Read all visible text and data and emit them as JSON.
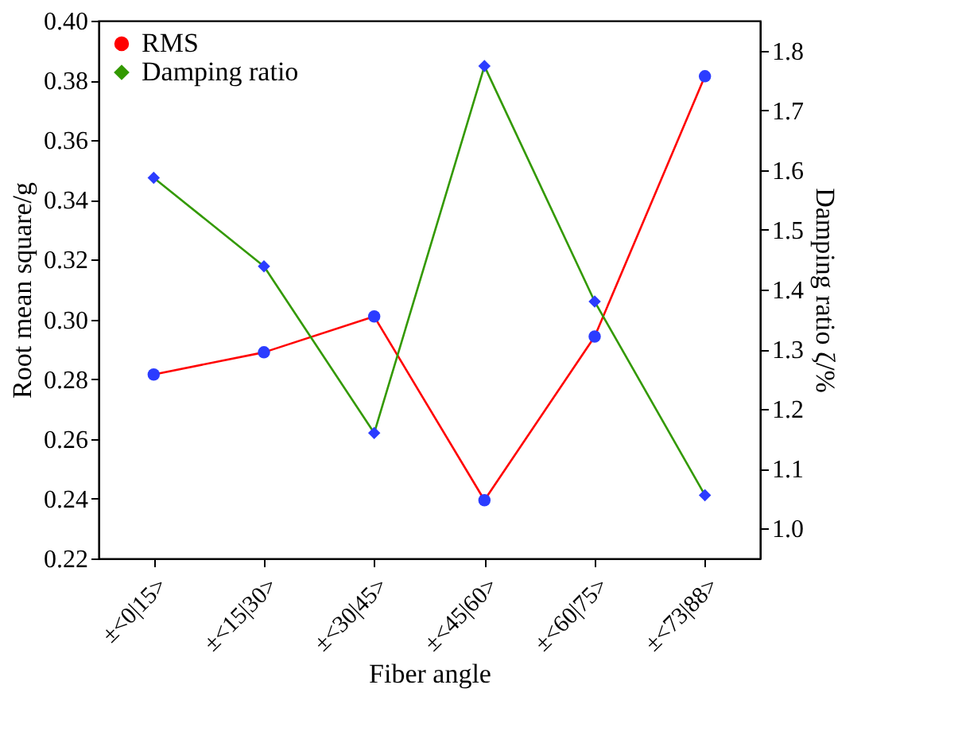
{
  "chart_data": {
    "type": "line",
    "xlabel": "Fiber angle",
    "ylabel": "Root mean square/g",
    "y2label": "Damping ratio ζ/%",
    "categories": [
      "±<0|15>",
      "±<15|30>",
      "±<30|45>",
      "±<45|60>",
      "±<60|75>",
      "±<73|88>"
    ],
    "series": [
      {
        "name": "RMS",
        "color": "#ff0000",
        "marker": "circle",
        "values": [
          0.2816,
          0.289,
          0.301,
          0.2395,
          0.2943,
          0.3814
        ]
      },
      {
        "name": "Damping ratio",
        "color": "#339900",
        "marker": "diamond",
        "axis": "y2",
        "values": [
          1.587,
          1.439,
          1.16,
          1.774,
          1.38,
          1.056
        ]
      }
    ],
    "ylim": [
      0.22,
      0.4
    ],
    "yticks": [
      0.22,
      0.24,
      0.26,
      0.28,
      {
        "value": 0.3,
        "label": "0.30"
      },
      0.32,
      0.34,
      0.36,
      0.38,
      {
        "value": 0.4,
        "label": "0.40"
      }
    ],
    "y2lim": [
      0.95,
      1.85
    ],
    "y2ticks": [
      {
        "value": 1.0,
        "label": "1.0"
      },
      1.1,
      1.2,
      1.3,
      1.4,
      1.5,
      1.6,
      1.7,
      1.8
    ],
    "grid": false,
    "legend": "top left",
    "line_style": "solid"
  }
}
